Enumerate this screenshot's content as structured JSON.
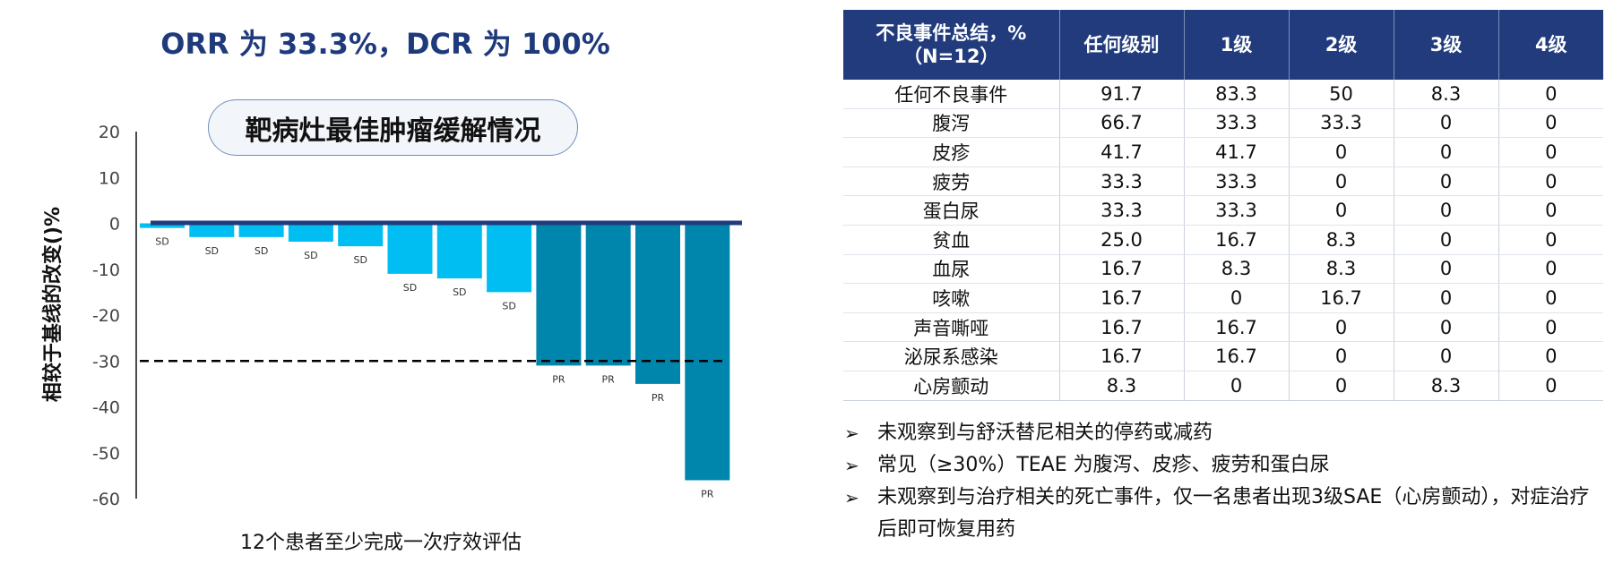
{
  "headline": "ORR 为 33.3%，DCR 为 100%",
  "chart_title": "靶病灶最佳肿瘤缓解情况",
  "chart_data": {
    "type": "bar",
    "title": "靶病灶最佳肿瘤缓解情况",
    "ylabel": "相较于基线的改变()%",
    "xlabel": "12个患者至少完成一次疗效评估",
    "ylim": [
      -60,
      20
    ],
    "yticks": [
      20,
      10,
      0,
      -10,
      -20,
      -30,
      -40,
      -50,
      -60
    ],
    "reference_line": -30,
    "values": [
      -1,
      -3,
      -3,
      -4,
      -5,
      -11,
      -12,
      -15,
      -31,
      -31,
      -35,
      -56
    ],
    "labels": [
      "SD",
      "SD",
      "SD",
      "SD",
      "SD",
      "SD",
      "SD",
      "SD",
      "PR",
      "PR",
      "PR",
      "PR"
    ],
    "colors": {
      "SD": "#00bef2",
      "PR": "#0085ad",
      "baseline": "#213b7d"
    }
  },
  "table": {
    "headers": [
      "不良事件总结，%（N=12）",
      "任何级别",
      "1级",
      "2级",
      "3级",
      "4级"
    ],
    "rows": [
      [
        "任何不良事件",
        "91.7",
        "83.3",
        "50",
        "8.3",
        "0"
      ],
      [
        "腹泻",
        "66.7",
        "33.3",
        "33.3",
        "0",
        "0"
      ],
      [
        "皮疹",
        "41.7",
        "41.7",
        "0",
        "0",
        "0"
      ],
      [
        "疲劳",
        "33.3",
        "33.3",
        "0",
        "0",
        "0"
      ],
      [
        "蛋白尿",
        "33.3",
        "33.3",
        "0",
        "0",
        "0"
      ],
      [
        "贫血",
        "25.0",
        "16.7",
        "8.3",
        "0",
        "0"
      ],
      [
        "血尿",
        "16.7",
        "8.3",
        "8.3",
        "0",
        "0"
      ],
      [
        "咳嗽",
        "16.7",
        "0",
        "16.7",
        "0",
        "0"
      ],
      [
        "声音嘶哑",
        "16.7",
        "16.7",
        "0",
        "0",
        "0"
      ],
      [
        "泌尿系感染",
        "16.7",
        "16.7",
        "0",
        "0",
        "0"
      ],
      [
        "心房颤动",
        "8.3",
        "0",
        "0",
        "8.3",
        "0"
      ]
    ]
  },
  "notes": [
    "未观察到与舒沃替尼相关的停药或减药",
    "常见（≥30%）TEAE 为腹泻、皮疹、疲劳和蛋白尿",
    "未观察到与治疗相关的死亡事件，仅一名患者出现3级SAE（心房颤动），对症治疗后即可恢复用药"
  ],
  "note_bullet": "➢"
}
